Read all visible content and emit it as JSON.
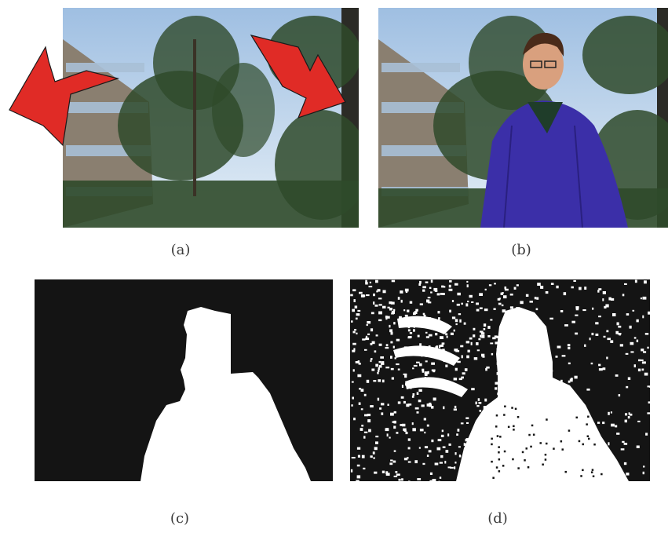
{
  "figure": {
    "panels": [
      {
        "id": "a",
        "caption": "(a)",
        "content": "background-scene-with-motion-arrows"
      },
      {
        "id": "b",
        "caption": "(b)",
        "content": "scene-with-person"
      },
      {
        "id": "c",
        "caption": "(c)",
        "content": "ground-truth-mask"
      },
      {
        "id": "d",
        "caption": "(d)",
        "content": "noisy-segmentation-mask"
      }
    ],
    "colors": {
      "sky": "#cfe0f0",
      "foliage": "#2f4a2a",
      "building": "#8a7f70",
      "arrow": "#e02b26",
      "jacket": "#3b2fa8",
      "mask_bg": "#141414",
      "mask_fg": "#ffffff"
    }
  }
}
